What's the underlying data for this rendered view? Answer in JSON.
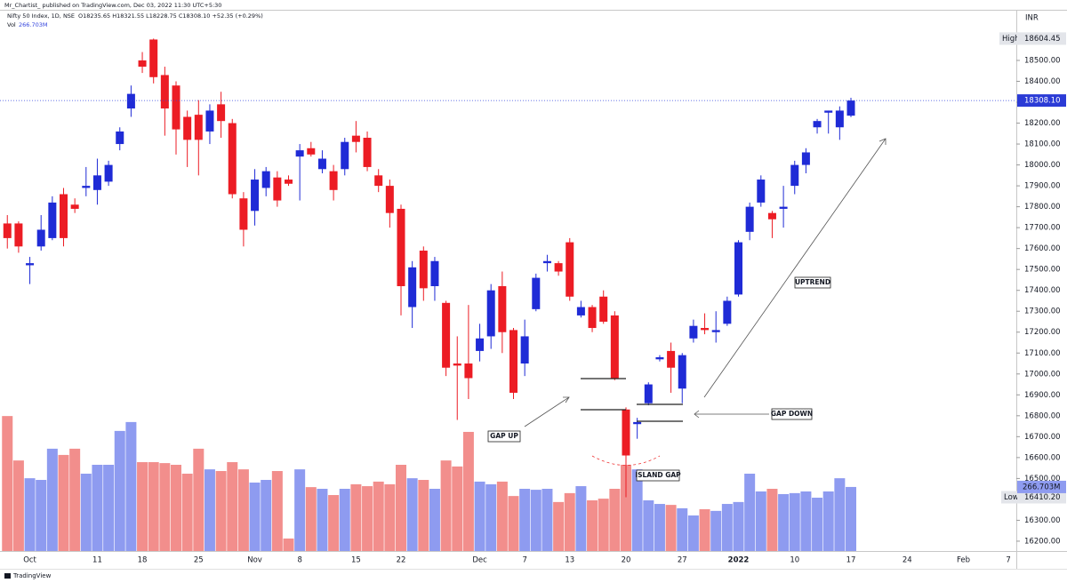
{
  "chart_data": {
    "type": "candlestick",
    "author_line": "Mr_Chartist_ published on TradingView.com, Dec 03, 2022 11:30 UTC+5:30",
    "symbol": "Nifty 50 Index, 1D, NSE",
    "ohlc_text": "O18235.65 H18321.55 L18228.75 C18308.10 +52.35 (+0.29%)",
    "volume_name": "Vol",
    "volume_text": "266.703M",
    "currency": "INR",
    "footer": "TradingView",
    "categories": [
      null,
      null,
      "Oct",
      null,
      null,
      null,
      null,
      null,
      "11",
      null,
      null,
      null,
      "18",
      null,
      null,
      null,
      null,
      "25",
      null,
      null,
      null,
      null,
      "Nov",
      null,
      null,
      null,
      "8",
      null,
      null,
      null,
      null,
      "15",
      null,
      null,
      null,
      "22",
      null,
      null,
      null,
      null,
      null,
      null,
      "Dec",
      null,
      null,
      null,
      "7",
      null,
      null,
      null,
      "13",
      null,
      null,
      null,
      null,
      "20",
      null,
      null,
      null,
      null,
      "27",
      null,
      null,
      null,
      null,
      "2022",
      null,
      null,
      null,
      null,
      "10",
      null,
      null,
      null,
      null,
      "17",
      null,
      null,
      null,
      null,
      "24",
      null,
      null,
      null,
      null,
      "Feb",
      null,
      null,
      null,
      "7"
    ],
    "open": [
      17720,
      17720,
      17520,
      17610,
      17650,
      17860,
      17810,
      17890,
      17880,
      17920,
      18100,
      18270,
      18500,
      18600,
      18430,
      18380,
      18230,
      18240,
      18160,
      18290,
      18200,
      17840,
      17780,
      17890,
      17940,
      17930,
      18040,
      18080,
      17980,
      17970,
      17980,
      18140,
      18130,
      17950,
      17900,
      17790,
      17320,
      17590,
      17420,
      17340,
      17050,
      17050,
      17110,
      17180,
      17420,
      17210,
      17050,
      17310,
      17530,
      17530,
      17630,
      17280,
      17320,
      17370,
      17280,
      16830,
      16760,
      16860,
      17070,
      17110,
      16930,
      17170,
      17220,
      17200,
      17240,
      17380,
      17680,
      17820,
      17770,
      17790,
      17900,
      18000,
      18180,
      18250,
      18180,
      18235.65,
      null,
      null,
      null,
      null,
      null,
      null,
      null,
      null,
      null,
      null,
      null,
      null,
      null,
      null
    ],
    "high": [
      17760,
      17730,
      17560,
      17760,
      17850,
      17890,
      17840,
      17990,
      18030,
      18020,
      18180,
      18380,
      18540,
      18604.45,
      18470,
      18400,
      18260,
      18310,
      18290,
      18350,
      18220,
      17870,
      17980,
      17990,
      17970,
      17950,
      18100,
      18110,
      18070,
      18000,
      18130,
      18210,
      18160,
      17980,
      17930,
      17810,
      17540,
      17610,
      17560,
      17350,
      17180,
      17330,
      17240,
      17430,
      17490,
      17220,
      17260,
      17480,
      17570,
      17540,
      17650,
      17350,
      17330,
      17400,
      17300,
      16840,
      16790,
      16960,
      17090,
      17150,
      17100,
      17260,
      17290,
      17300,
      17370,
      17640,
      17820,
      17950,
      17780,
      17900,
      18020,
      18080,
      18220,
      18260,
      18280,
      18321.55,
      null,
      null,
      null,
      null,
      null,
      null,
      null,
      null,
      null,
      null,
      null,
      null,
      null,
      null
    ],
    "low": [
      17600,
      17580,
      17430,
      17590,
      17640,
      17610,
      17770,
      17850,
      17810,
      17900,
      18070,
      18230,
      18440,
      18390,
      18140,
      18050,
      17990,
      17950,
      18100,
      18130,
      17840,
      17610,
      17710,
      17850,
      17800,
      17900,
      17830,
      18040,
      17960,
      17830,
      17950,
      18060,
      17970,
      17870,
      17700,
      17280,
      17220,
      17350,
      17350,
      16990,
      16780,
      16880,
      17060,
      17120,
      17100,
      16880,
      16990,
      17300,
      17490,
      17470,
      17350,
      17270,
      17200,
      17240,
      16970,
      16410.2,
      16690,
      16850,
      17060,
      16910,
      16860,
      17150,
      17190,
      17150,
      17230,
      17370,
      17640,
      17800,
      17650,
      17700,
      17860,
      17960,
      18150,
      18150,
      18120,
      18228.75,
      null,
      null,
      null,
      null,
      null,
      null,
      null,
      null,
      null,
      null,
      null,
      null,
      null,
      null
    ],
    "close": [
      17650,
      17610,
      17530,
      17690,
      17820,
      17650,
      17790,
      17900,
      17950,
      18000,
      18160,
      18340,
      18470,
      18420,
      18270,
      18170,
      18120,
      18120,
      18260,
      18210,
      17860,
      17690,
      17930,
      17970,
      17830,
      17910,
      18070,
      18050,
      18030,
      17880,
      18110,
      18110,
      17990,
      17900,
      17770,
      17420,
      17510,
      17410,
      17540,
      17030,
      17040,
      16980,
      17170,
      17400,
      17200,
      16910,
      17180,
      17460,
      17540,
      17490,
      17370,
      17320,
      17220,
      17250,
      16980,
      16610,
      16770,
      16950,
      17080,
      17030,
      17090,
      17230,
      17210,
      17210,
      17350,
      17630,
      17800,
      17930,
      17740,
      17800,
      18000,
      18060,
      18210,
      18260,
      18260,
      18308.1,
      null,
      null,
      null,
      null,
      null,
      null,
      null,
      null,
      null,
      null,
      null,
      null,
      null,
      null
    ],
    "volume": [
      562,
      377,
      303,
      296,
      426,
      400,
      426,
      322,
      359,
      359,
      500,
      537,
      370,
      370,
      366,
      359,
      322,
      426,
      340,
      333,
      370,
      340,
      285,
      296,
      333,
      52,
      340,
      266,
      259,
      233,
      259,
      278,
      270,
      289,
      278,
      359,
      303,
      296,
      259,
      377,
      352,
      496,
      289,
      278,
      289,
      229,
      259,
      255,
      259,
      204,
      241,
      270,
      211,
      218,
      259,
      359,
      340,
      211,
      196,
      192,
      178,
      148,
      174,
      167,
      196,
      204,
      322,
      248,
      259,
      237,
      241,
      248,
      222,
      248,
      303,
      266.703,
      null,
      null,
      null,
      null,
      null,
      null,
      null,
      null,
      null,
      null,
      null,
      null,
      null,
      null
    ],
    "ylim": [
      16153,
      18738
    ],
    "volume_lim": [
      0,
      2250
    ],
    "yticks": [
      {
        "value": 16200,
        "label": "16200.00"
      },
      {
        "value": 16300,
        "label": "16300.00"
      },
      {
        "value": 16400,
        "label": "16400.00"
      },
      {
        "value": 16500,
        "label": "16500.00"
      },
      {
        "value": 16600,
        "label": "16600.00"
      },
      {
        "value": 16700,
        "label": "16700.00"
      },
      {
        "value": 16800,
        "label": "16800.00"
      },
      {
        "value": 16900,
        "label": "16900.00"
      },
      {
        "value": 17000,
        "label": "17000.00"
      },
      {
        "value": 17100,
        "label": "17100.00"
      },
      {
        "value": 17200,
        "label": "17200.00"
      },
      {
        "value": 17300,
        "label": "17300.00"
      },
      {
        "value": 17400,
        "label": "17400.00"
      },
      {
        "value": 17500,
        "label": "17500.00"
      },
      {
        "value": 17600,
        "label": "17600.00"
      },
      {
        "value": 17700,
        "label": "17700.00"
      },
      {
        "value": 17800,
        "label": "17800.00"
      },
      {
        "value": 17900,
        "label": "17900.00"
      },
      {
        "value": 18000,
        "label": "18000.00"
      },
      {
        "value": 18100,
        "label": "18100.00"
      },
      {
        "value": 18200,
        "label": "18200.00"
      },
      {
        "value": 18300,
        "label": "18300.00"
      },
      {
        "value": 18400,
        "label": "18400.00"
      },
      {
        "value": 18500,
        "label": "18500.00"
      }
    ],
    "high_marker": {
      "name": "High",
      "value": 18604.45
    },
    "low_marker": {
      "name": "Low",
      "value": 16410.2,
      "label": "16410.20"
    },
    "last_price": {
      "value": 18308.1,
      "label": "18308.10"
    },
    "last_volume_label": "266.703M",
    "annotations": [
      "GAP UP",
      "GAP DOWN",
      "ISLAND GAP",
      "UPTREND"
    ],
    "grid": false,
    "up_color": "#1f2bd6",
    "down_color": "#ec1c24",
    "volume_up_color": "#8e9bf0",
    "volume_down_color": "#f28e8c"
  }
}
